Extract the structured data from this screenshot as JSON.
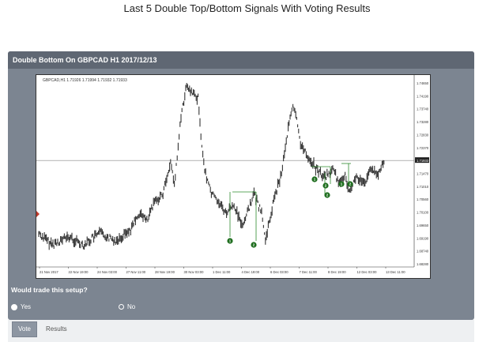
{
  "page": {
    "title": "Last 5 Double Top/Bottom Signals With Voting Results"
  },
  "panel": {
    "title": "Double Bottom On GBPCAD H1 2017/12/13"
  },
  "chart": {
    "header_text": "GBPCAD,H1  1.71926 1.71994 1.71932 1.71933",
    "price_ticks": [
      "1.74650",
      "1.74190",
      "1.73740",
      "1.73280",
      "1.72830",
      "1.72370",
      "1.71933",
      "1.71470",
      "1.71010",
      "1.70560",
      "1.70100",
      "1.69650",
      "1.69190",
      "1.68740",
      "1.68280"
    ],
    "current_price_label": "1.71933",
    "time_ticks": [
      "21 Nov 2017",
      "22 Nov 19:00",
      "24 Nov 03:00",
      "27 Nov 11:00",
      "28 Nov 19:00",
      "30 Nov 03:00",
      "1 Dec 11:00",
      "4 Dec 19:00",
      "6 Dec 03:00",
      "7 Dec 11:00",
      "8 Dec 19:00",
      "12 Dec 03:00",
      "13 Dec 11:00"
    ],
    "markers": [
      {
        "label": "1"
      },
      {
        "label": "2"
      },
      {
        "label": "1"
      },
      {
        "label": "2"
      },
      {
        "label": "2"
      },
      {
        "label": "1"
      },
      {
        "label": "2"
      }
    ],
    "colors": {
      "candles": "#333333",
      "pattern": "#2e8b2e",
      "marker": "#1f6e1f",
      "grid": "#444444"
    }
  },
  "vote": {
    "question": "Would trade this setup?",
    "option_yes": "Yes",
    "option_no": "No",
    "vote_button": "Vote",
    "results_link": "Results"
  }
}
